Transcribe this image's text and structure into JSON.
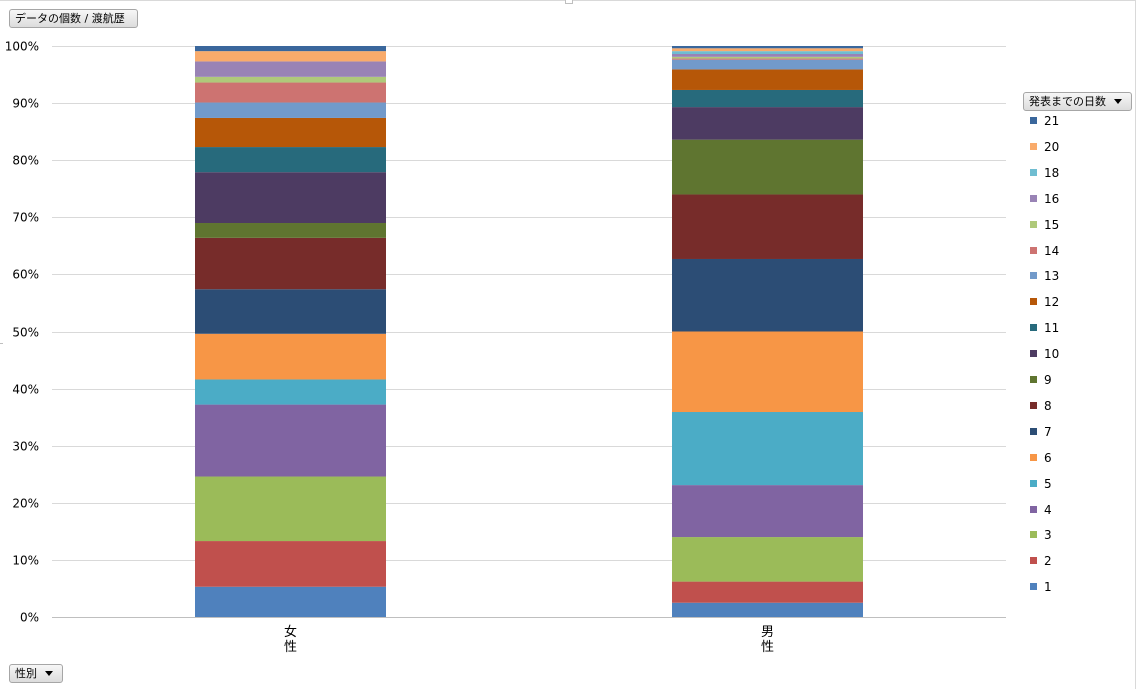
{
  "pivot": {
    "values_field": "データの個数 / 渡航歴",
    "legend_field": "発表までの日数",
    "axis_field": "性別"
  },
  "colors": {
    "1": "#4f81bd",
    "2": "#c0504d",
    "3": "#9bbb59",
    "4": "#8064a2",
    "5": "#4bacc6",
    "6": "#f79646",
    "7": "#2c4d75",
    "8": "#772c2a",
    "9": "#5f7530",
    "10": "#4d3b62",
    "11": "#276a7c",
    "12": "#b65708",
    "13": "#729aca",
    "14": "#cd7371",
    "15": "#afc97a",
    "16": "#9983b5",
    "18": "#6fbdd1",
    "20": "#f9ab6b",
    "21": "#3a679c"
  },
  "chart_data": {
    "type": "bar",
    "stacked": "percent",
    "categories": [
      "女\n性",
      "男\n性"
    ],
    "yticks": [
      "0%",
      "10%",
      "20%",
      "30%",
      "40%",
      "50%",
      "60%",
      "70%",
      "80%",
      "90%",
      "100%"
    ],
    "ylim": [
      0,
      100
    ],
    "grid": true,
    "legend_position": "right",
    "series": [
      {
        "name": "1",
        "values": [
          5.3,
          2.5
        ]
      },
      {
        "name": "2",
        "values": [
          8.0,
          3.7
        ]
      },
      {
        "name": "3",
        "values": [
          11.3,
          7.8
        ]
      },
      {
        "name": "4",
        "values": [
          12.6,
          9.1
        ]
      },
      {
        "name": "5",
        "values": [
          4.4,
          12.8
        ]
      },
      {
        "name": "6",
        "values": [
          8.0,
          14.1
        ]
      },
      {
        "name": "7",
        "values": [
          7.8,
          12.7
        ]
      },
      {
        "name": "8",
        "values": [
          9.0,
          11.3
        ]
      },
      {
        "name": "9",
        "values": [
          2.6,
          9.6
        ]
      },
      {
        "name": "10",
        "values": [
          8.9,
          5.7
        ]
      },
      {
        "name": "11",
        "values": [
          4.4,
          3.0
        ]
      },
      {
        "name": "12",
        "values": [
          5.1,
          3.6
        ]
      },
      {
        "name": "13",
        "values": [
          2.7,
          1.7
        ]
      },
      {
        "name": "14",
        "values": [
          3.5,
          0.2
        ]
      },
      {
        "name": "15",
        "values": [
          1.0,
          0.3
        ]
      },
      {
        "name": "16",
        "values": [
          2.7,
          0.5
        ]
      },
      {
        "name": "18",
        "values": [
          0.0,
          0.5
        ]
      },
      {
        "name": "20",
        "values": [
          1.8,
          0.5
        ]
      },
      {
        "name": "21",
        "values": [
          0.9,
          0.4
        ]
      }
    ]
  }
}
